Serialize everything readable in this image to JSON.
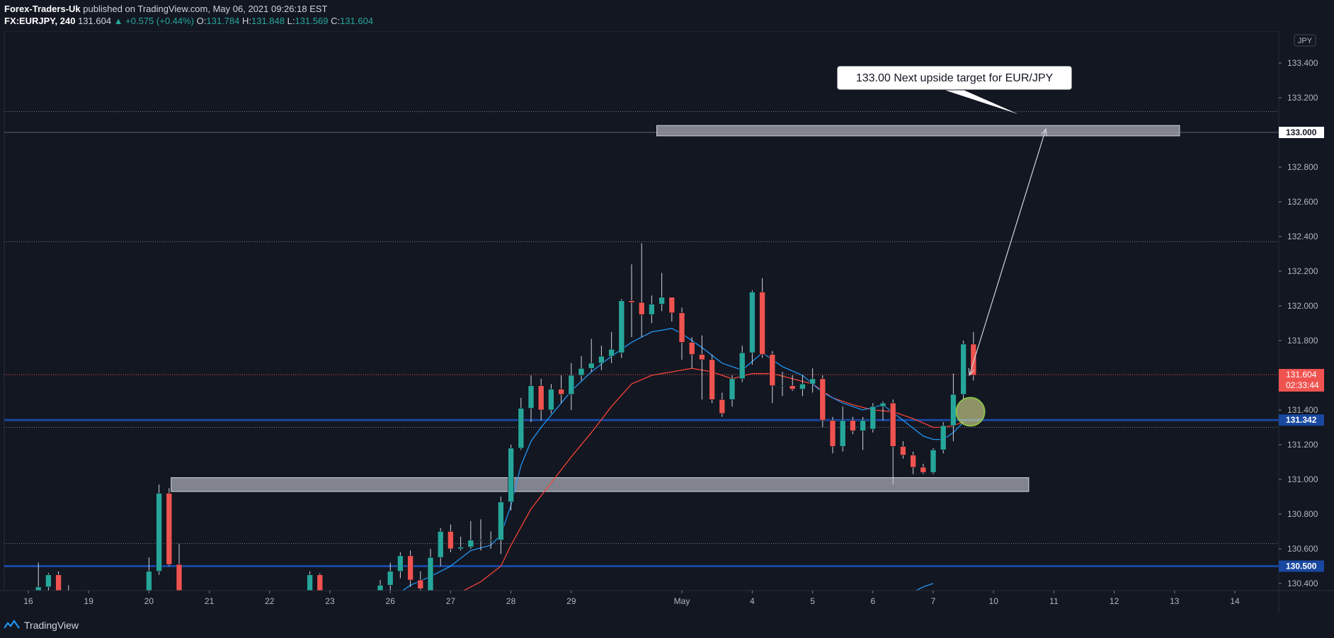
{
  "header": {
    "author": "Forex-Traders-Uk",
    "published_text": " published on TradingView.com, May 06, 2021 09:26:18 EST",
    "symbol": "FX:EURJPY, 240",
    "last": "131.604",
    "change": "▲ +0.575 (+0.44%)",
    "o_label": "O:",
    "o_value": "131.784",
    "h_label": "H:",
    "h_value": "131.848",
    "l_label": "L:",
    "l_value": "131.569",
    "c_label": "C:",
    "c_value": "131.604"
  },
  "footer": {
    "brand": "TradingView",
    "logo_icon": "tradingview-logo-icon"
  },
  "colors": {
    "background": "#131722",
    "up": "#26a69a",
    "down": "#ef5350",
    "ema_fast": "#2196f3",
    "ema_slow": "#f44336",
    "level_line": "#1848a0",
    "zone_fill": "#9598a1"
  },
  "chart_data": {
    "type": "candlestick",
    "symbol": "FX:EURJPY",
    "timeframe": "240",
    "currency_label": "JPY",
    "ylim": [
      130.3,
      133.5
    ],
    "y_ticks": [
      "133.400",
      "133.200",
      "133.000",
      "132.800",
      "132.600",
      "132.400",
      "132.200",
      "132.000",
      "131.800",
      "131.600",
      "131.400",
      "131.200",
      "131.000",
      "130.800",
      "130.600",
      "130.400"
    ],
    "x_ticks": [
      {
        "label": "16",
        "x": 0
      },
      {
        "label": "19",
        "x": 6
      },
      {
        "label": "20",
        "x": 12
      },
      {
        "label": "21",
        "x": 18
      },
      {
        "label": "22",
        "x": 24
      },
      {
        "label": "23",
        "x": 30
      },
      {
        "label": "26",
        "x": 36
      },
      {
        "label": "27",
        "x": 42
      },
      {
        "label": "28",
        "x": 48
      },
      {
        "label": "29",
        "x": 54
      },
      {
        "label": "May",
        "x": 65
      },
      {
        "label": "4",
        "x": 72
      },
      {
        "label": "5",
        "x": 78
      },
      {
        "label": "6",
        "x": 84
      },
      {
        "label": "7",
        "x": 90
      },
      {
        "label": "10",
        "x": 96
      },
      {
        "label": "11",
        "x": 102
      },
      {
        "label": "12",
        "x": 108
      },
      {
        "label": "13",
        "x": 114
      },
      {
        "label": "14",
        "x": 120
      }
    ],
    "candles": [
      {
        "x": 1,
        "o": 130.31,
        "h": 130.52,
        "l": 130.3,
        "c": 130.38
      },
      {
        "x": 2,
        "o": 130.38,
        "h": 130.46,
        "l": 130.34,
        "c": 130.45
      },
      {
        "x": 3,
        "o": 130.45,
        "h": 130.47,
        "l": 130.33,
        "c": 130.36
      },
      {
        "x": 4,
        "o": 130.36,
        "h": 130.39,
        "l": 130.3,
        "c": 130.33
      },
      {
        "x": 12,
        "o": 130.31,
        "h": 130.55,
        "l": 130.3,
        "c": 130.47
      },
      {
        "x": 13,
        "o": 130.47,
        "h": 130.97,
        "l": 130.45,
        "c": 130.92
      },
      {
        "x": 14,
        "o": 130.92,
        "h": 130.95,
        "l": 130.5,
        "c": 130.51
      },
      {
        "x": 15,
        "o": 130.51,
        "h": 130.63,
        "l": 130.3,
        "c": 130.32
      },
      {
        "x": 28,
        "o": 130.33,
        "h": 130.47,
        "l": 130.3,
        "c": 130.45
      },
      {
        "x": 29,
        "o": 130.45,
        "h": 130.46,
        "l": 130.32,
        "c": 130.35
      },
      {
        "x": 35,
        "o": 130.33,
        "h": 130.42,
        "l": 130.31,
        "c": 130.39
      },
      {
        "x": 36,
        "o": 130.39,
        "h": 130.52,
        "l": 130.36,
        "c": 130.47
      },
      {
        "x": 37,
        "o": 130.47,
        "h": 130.58,
        "l": 130.43,
        "c": 130.56
      },
      {
        "x": 38,
        "o": 130.56,
        "h": 130.59,
        "l": 130.38,
        "c": 130.42
      },
      {
        "x": 39,
        "o": 130.42,
        "h": 130.47,
        "l": 130.33,
        "c": 130.37
      },
      {
        "x": 40,
        "o": 130.33,
        "h": 130.6,
        "l": 130.3,
        "c": 130.55
      },
      {
        "x": 41,
        "o": 130.55,
        "h": 130.72,
        "l": 130.5,
        "c": 130.7
      },
      {
        "x": 42,
        "o": 130.7,
        "h": 130.74,
        "l": 130.58,
        "c": 130.6
      },
      {
        "x": 43,
        "o": 130.6,
        "h": 130.67,
        "l": 130.59,
        "c": 130.61
      },
      {
        "x": 44,
        "o": 130.61,
        "h": 130.76,
        "l": 130.6,
        "c": 130.65
      },
      {
        "x": 45,
        "o": 130.65,
        "h": 130.77,
        "l": 130.59,
        "c": 130.65
      },
      {
        "x": 46,
        "o": 130.65,
        "h": 130.7,
        "l": 130.6,
        "c": 130.65
      },
      {
        "x": 47,
        "o": 130.65,
        "h": 130.9,
        "l": 130.57,
        "c": 130.87
      },
      {
        "x": 48,
        "o": 130.87,
        "h": 131.2,
        "l": 130.82,
        "c": 131.18
      },
      {
        "x": 49,
        "o": 131.18,
        "h": 131.47,
        "l": 131.17,
        "c": 131.41
      },
      {
        "x": 50,
        "o": 131.41,
        "h": 131.6,
        "l": 131.33,
        "c": 131.54
      },
      {
        "x": 51,
        "o": 131.54,
        "h": 131.58,
        "l": 131.34,
        "c": 131.4
      },
      {
        "x": 52,
        "o": 131.4,
        "h": 131.55,
        "l": 131.38,
        "c": 131.52
      },
      {
        "x": 53,
        "o": 131.52,
        "h": 131.6,
        "l": 131.44,
        "c": 131.49
      },
      {
        "x": 54,
        "o": 131.49,
        "h": 131.67,
        "l": 131.4,
        "c": 131.6
      },
      {
        "x": 55,
        "o": 131.6,
        "h": 131.71,
        "l": 131.57,
        "c": 131.64
      },
      {
        "x": 56,
        "o": 131.64,
        "h": 131.81,
        "l": 131.62,
        "c": 131.67
      },
      {
        "x": 57,
        "o": 131.67,
        "h": 131.77,
        "l": 131.63,
        "c": 131.71
      },
      {
        "x": 58,
        "o": 131.71,
        "h": 131.85,
        "l": 131.67,
        "c": 131.75
      },
      {
        "x": 59,
        "o": 131.73,
        "h": 132.04,
        "l": 131.7,
        "c": 132.03
      },
      {
        "x": 60,
        "o": 132.03,
        "h": 132.24,
        "l": 131.82,
        "c": 132.02
      },
      {
        "x": 61,
        "o": 132.02,
        "h": 132.36,
        "l": 131.82,
        "c": 131.95
      },
      {
        "x": 62,
        "o": 131.95,
        "h": 132.06,
        "l": 131.9,
        "c": 132.01
      },
      {
        "x": 63,
        "o": 132.01,
        "h": 132.19,
        "l": 131.97,
        "c": 132.05
      },
      {
        "x": 64,
        "o": 132.05,
        "h": 132.05,
        "l": 131.91,
        "c": 131.96
      },
      {
        "x": 65,
        "o": 131.96,
        "h": 131.99,
        "l": 131.69,
        "c": 131.79
      },
      {
        "x": 66,
        "o": 131.79,
        "h": 131.82,
        "l": 131.64,
        "c": 131.72
      },
      {
        "x": 67,
        "o": 131.72,
        "h": 131.83,
        "l": 131.46,
        "c": 131.69
      },
      {
        "x": 68,
        "o": 131.69,
        "h": 131.72,
        "l": 131.44,
        "c": 131.46
      },
      {
        "x": 69,
        "o": 131.46,
        "h": 131.5,
        "l": 131.36,
        "c": 131.38
      },
      {
        "x": 70,
        "o": 131.46,
        "h": 131.6,
        "l": 131.42,
        "c": 131.58
      },
      {
        "x": 71,
        "o": 131.58,
        "h": 131.77,
        "l": 131.56,
        "c": 131.73
      },
      {
        "x": 72,
        "o": 131.73,
        "h": 132.09,
        "l": 131.66,
        "c": 132.08
      },
      {
        "x": 73,
        "o": 132.08,
        "h": 132.16,
        "l": 131.7,
        "c": 131.72
      },
      {
        "x": 74,
        "o": 131.72,
        "h": 131.74,
        "l": 131.44,
        "c": 131.54
      },
      {
        "x": 75,
        "o": 131.54,
        "h": 131.62,
        "l": 131.48,
        "c": 131.54
      },
      {
        "x": 76,
        "o": 131.54,
        "h": 131.6,
        "l": 131.51,
        "c": 131.52
      },
      {
        "x": 77,
        "o": 131.52,
        "h": 131.6,
        "l": 131.48,
        "c": 131.55
      },
      {
        "x": 78,
        "o": 131.55,
        "h": 131.64,
        "l": 131.5,
        "c": 131.58
      },
      {
        "x": 79,
        "o": 131.58,
        "h": 131.6,
        "l": 131.3,
        "c": 131.34
      },
      {
        "x": 80,
        "o": 131.34,
        "h": 131.36,
        "l": 131.15,
        "c": 131.19
      },
      {
        "x": 81,
        "o": 131.19,
        "h": 131.42,
        "l": 131.16,
        "c": 131.34
      },
      {
        "x": 82,
        "o": 131.34,
        "h": 131.36,
        "l": 131.26,
        "c": 131.28
      },
      {
        "x": 83,
        "o": 131.28,
        "h": 131.36,
        "l": 131.17,
        "c": 131.34
      },
      {
        "x": 84,
        "o": 131.29,
        "h": 131.44,
        "l": 131.27,
        "c": 131.42
      },
      {
        "x": 85,
        "o": 131.42,
        "h": 131.45,
        "l": 131.34,
        "c": 131.44
      },
      {
        "x": 86,
        "o": 131.44,
        "h": 131.46,
        "l": 130.97,
        "c": 131.19
      },
      {
        "x": 87,
        "o": 131.19,
        "h": 131.22,
        "l": 131.12,
        "c": 131.14
      },
      {
        "x": 88,
        "o": 131.14,
        "h": 131.16,
        "l": 131.03,
        "c": 131.07
      },
      {
        "x": 89,
        "o": 131.07,
        "h": 131.09,
        "l": 131.03,
        "c": 131.04
      },
      {
        "x": 90,
        "o": 131.04,
        "h": 131.18,
        "l": 131.03,
        "c": 131.17
      },
      {
        "x": 91,
        "o": 131.17,
        "h": 131.33,
        "l": 131.15,
        "c": 131.31
      },
      {
        "x": 92,
        "o": 131.31,
        "h": 131.61,
        "l": 131.22,
        "c": 131.49
      },
      {
        "x": 93,
        "o": 131.49,
        "h": 131.8,
        "l": 131.46,
        "c": 131.78
      },
      {
        "x": 94,
        "o": 131.78,
        "h": 131.85,
        "l": 131.57,
        "c": 131.6
      }
    ],
    "ema_fast": [
      [
        34,
        130.3
      ],
      [
        36,
        130.31
      ],
      [
        38,
        130.39
      ],
      [
        40,
        130.44
      ],
      [
        42,
        130.5
      ],
      [
        44,
        130.59
      ],
      [
        46,
        130.62
      ],
      [
        47,
        130.68
      ],
      [
        48,
        130.85
      ],
      [
        49,
        131.08
      ],
      [
        50,
        131.22
      ],
      [
        51,
        131.3
      ],
      [
        52,
        131.37
      ],
      [
        54,
        131.51
      ],
      [
        56,
        131.62
      ],
      [
        58,
        131.71
      ],
      [
        60,
        131.79
      ],
      [
        62,
        131.85
      ],
      [
        64,
        131.87
      ],
      [
        65,
        131.84
      ],
      [
        67,
        131.76
      ],
      [
        69,
        131.67
      ],
      [
        71,
        131.63
      ],
      [
        73,
        131.73
      ],
      [
        75,
        131.65
      ],
      [
        77,
        131.6
      ],
      [
        79,
        131.5
      ],
      [
        81,
        131.44
      ],
      [
        83,
        131.4
      ],
      [
        85,
        131.43
      ],
      [
        87,
        131.34
      ],
      [
        89,
        131.25
      ],
      [
        90,
        131.23
      ],
      [
        91,
        131.23
      ],
      [
        92,
        131.27
      ],
      [
        93,
        131.33
      ]
    ],
    "ema_slow": [
      [
        41,
        130.31
      ],
      [
        43,
        130.35
      ],
      [
        45,
        130.41
      ],
      [
        47,
        130.5
      ],
      [
        48,
        130.62
      ],
      [
        50,
        130.83
      ],
      [
        52,
        130.98
      ],
      [
        54,
        131.13
      ],
      [
        56,
        131.27
      ],
      [
        58,
        131.42
      ],
      [
        60,
        131.55
      ],
      [
        62,
        131.6
      ],
      [
        64,
        131.62
      ],
      [
        66,
        131.64
      ],
      [
        68,
        131.62
      ],
      [
        70,
        131.58
      ],
      [
        72,
        131.61
      ],
      [
        74,
        131.61
      ],
      [
        76,
        131.58
      ],
      [
        78,
        131.55
      ],
      [
        80,
        131.47
      ],
      [
        82,
        131.43
      ],
      [
        84,
        131.4
      ],
      [
        86,
        131.39
      ],
      [
        88,
        131.35
      ],
      [
        90,
        131.3
      ],
      [
        91,
        131.3
      ],
      [
        92,
        131.31
      ],
      [
        93,
        131.33
      ]
    ],
    "ema_fast_tail": [
      [
        83,
        130.3
      ],
      [
        88,
        130.35
      ],
      [
        89,
        130.38
      ],
      [
        90,
        130.4
      ]
    ],
    "zones": [
      {
        "x1": 62.5,
        "x2": 114.5,
        "y_low": 132.98,
        "y_high": 133.04
      },
      {
        "x1": 14.2,
        "x2": 99.5,
        "y_low": 130.93,
        "y_high": 131.01
      }
    ],
    "h_lines": [
      {
        "y": 131.342,
        "label": "131.342",
        "style": "solid-blue"
      },
      {
        "y": 130.5,
        "label": "130.500",
        "style": "solid-blue"
      },
      {
        "y": 133.0,
        "label": "133.000",
        "style": "thin-gray"
      },
      {
        "y": 133.12,
        "style": "dotted"
      },
      {
        "y": 132.37,
        "style": "dotted"
      },
      {
        "y": 131.3,
        "style": "dotted"
      },
      {
        "y": 130.63,
        "style": "dotted"
      },
      {
        "y": 131.604,
        "style": "dotted-red"
      }
    ],
    "last_price": {
      "value": "131.604",
      "countdown": "02:33:44"
    },
    "annotation": {
      "text": "133.00 Next upside target for EUR/JPY",
      "arrow_from": {
        "x": 93.6,
        "y": 131.6
      },
      "arrow_to": {
        "x": 101.2,
        "y": 133.02
      }
    },
    "highlight_circle": {
      "x": 93.7,
      "y": 131.39
    }
  }
}
